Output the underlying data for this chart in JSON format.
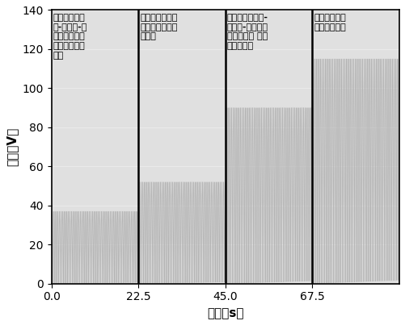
{
  "title": "",
  "xlabel": "时间（s）",
  "ylabel": "电压（V）",
  "xlim": [
    0,
    90
  ],
  "ylim": [
    0,
    140
  ],
  "xticks": [
    0.0,
    22.5,
    45.0,
    67.5
  ],
  "yticks": [
    0,
    20,
    40,
    60,
    80,
    100,
    120,
    140
  ],
  "background_color": "#ffffff",
  "panel_bg_color": "#e0e0e0",
  "segments": [
    {
      "x_start": 0,
      "x_end": 22.5,
      "amplitude": 37,
      "frequency": 2.2,
      "label_lines": [
        "不含有钛酸铋",
        "钠-钛酸锶-聚",
        "酰亚胺复合夹",
        "层摩擦纳米发",
        "电机"
      ]
    },
    {
      "x_start": 22.5,
      "x_end": 45.0,
      "amplitude": 52,
      "frequency": 2.2,
      "label_lines": [
        "仅含有聚酰亚胺",
        "夹层的摩擦纳米",
        "发电机"
      ]
    },
    {
      "x_start": 45.0,
      "x_end": 67.5,
      "amplitude": 90,
      "frequency": 2.2,
      "label_lines": [
        "含过量钛酸铋钠-",
        "钛酸锶-聚酰亚胺",
        "复合夹层的 摩擦",
        "纳米发电机"
      ]
    },
    {
      "x_start": 67.5,
      "x_end": 90.0,
      "amplitude": 115,
      "frequency": 2.2,
      "label_lines": [
        "本发明提供摩",
        "擦纳米发电机"
      ]
    }
  ],
  "wave_color": "#b0b0b0",
  "wave_linewidth": 0.5,
  "divider_color": "#000000",
  "divider_linewidth": 1.8,
  "label_fontsize": 8.0,
  "label_fontweight": "bold",
  "axis_label_fontsize": 11,
  "tick_fontsize": 10,
  "xlabel_fontweight": "bold",
  "ylabel_fontweight": "bold"
}
